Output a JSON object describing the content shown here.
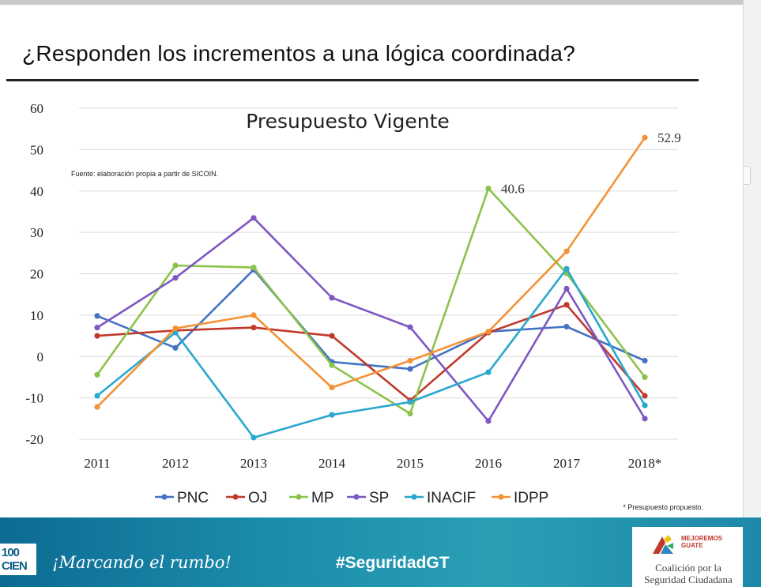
{
  "slide": {
    "title": "¿Responden los incrementos a una lógica coordinada?"
  },
  "chart_data": {
    "type": "line",
    "title": "Presupuesto Vigente",
    "source_note": "Fuente: elaboración propia a partir de SICOIN.",
    "footnote": "* Presupuesto propuesto.",
    "categories": [
      "2011",
      "2012",
      "2013",
      "2014",
      "2015",
      "2016",
      "2017",
      "2018*"
    ],
    "ylim": [
      -20,
      60
    ],
    "yticks": [
      -20,
      -10,
      0,
      10,
      20,
      30,
      40,
      50,
      60
    ],
    "grid": true,
    "legend_position": "bottom",
    "series": [
      {
        "name": "PNC",
        "color": "#4472c4",
        "values": [
          9.8,
          2.1,
          21.0,
          -1.3,
          -3.0,
          6.0,
          7.2,
          -1.0
        ]
      },
      {
        "name": "OJ",
        "color": "#c0392b",
        "values": [
          5.0,
          6.3,
          7.0,
          5.0,
          -10.6,
          5.8,
          12.5,
          -9.5
        ]
      },
      {
        "name": "MP",
        "color": "#8bc34a",
        "values": [
          -4.4,
          22.0,
          21.5,
          -2.1,
          -13.8,
          40.6,
          20.1,
          -5.0
        ]
      },
      {
        "name": "SP",
        "color": "#7e57c2",
        "values": [
          7.0,
          19.0,
          33.5,
          14.2,
          7.1,
          -15.6,
          16.4,
          -15.0
        ]
      },
      {
        "name": "INACIF",
        "color": "#29a7cf",
        "values": [
          -9.5,
          5.8,
          -19.6,
          -14.1,
          -11.0,
          -3.8,
          21.2,
          -11.8
        ]
      },
      {
        "name": "IDPP",
        "color": "#f39235",
        "values": [
          -12.2,
          6.8,
          10.0,
          -7.5,
          -1.0,
          6.0,
          25.4,
          52.9
        ]
      }
    ],
    "annotations": [
      {
        "series": "MP",
        "category": "2016",
        "label": "40.6"
      },
      {
        "series": "IDPP",
        "category": "2018*",
        "label": "52.9"
      }
    ]
  },
  "footer": {
    "logo_top": "100",
    "logo_bottom": "CIEN",
    "motto": "¡Marcando el rumbo!",
    "hashtag": "#SeguridadGT",
    "badge_brand_line1": "MEJOREMOS",
    "badge_brand_line2": "GUATE",
    "badge_name": "Coalición por la Seguridad Ciudadana"
  },
  "colors": {
    "footer_blue": "#1b8cab",
    "grid": "#d9d9d9",
    "axis_text": "#222222"
  },
  "icons": {
    "badge_mark": "mejoremos-guate-logo-icon"
  }
}
